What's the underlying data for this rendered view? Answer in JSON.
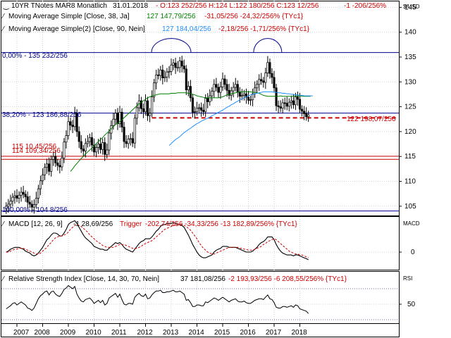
{
  "header": {
    "main_symbol": "10YR TNotes MAR8 Monatlich",
    "main_date": "31.01.2018",
    "main_ohlc": "- O:123 252/256 H:124 L:122 180/256 C:123 12/256",
    "main_change": "-1 -206/256%",
    "ma1_text": "Moving Average Simple [Close, 38, Ja]",
    "ma1_val": "127 147,79/256",
    "ma1_chg": "-31,05/256 -24,32/256% {TYc1}",
    "ma2_text": "Moving Average Simple(2) [Close, 90, Nein]",
    "ma2_val": "127 184,04/256",
    "ma2_chg": "-2,18/256 -1,71/256% {TYc1}",
    "macd_text": "MACD [12, 26, 9]",
    "macd_val": "-1 28,69/256",
    "macd_trigger": "Trigger",
    "macd_trigger_val": "-202,74/256 -34,33/256 -13 182,89/256% {TYc1}",
    "rsi_text": "Relative Strength Index [Close, 14, 30, 70, Nein]",
    "rsi_val": "37 181,08/256",
    "rsi_chg": "-2 193,93/256 -6 208,55/256% {TYc1}"
  },
  "axis": {
    "unit_main": "$/USD",
    "unit_macd": "MACD",
    "unit_rsi": "RSI"
  },
  "levels": {
    "fib0": "0,00% - 135 232/256",
    "fib38": "38,20% - 123 186,88/256",
    "fib100": "100,00% - 104 8/256",
    "r1": "115 10,45/256",
    "r2": "114 109,34/256",
    "support": "122 198,07/256"
  },
  "colors": {
    "up": "#000000",
    "down": "#000000",
    "ma38": "#008000",
    "ma90": "#1e90ff",
    "fib": "#00008b",
    "red": "#cc0000",
    "macd": "#000000",
    "trigger": "#cc0000",
    "rsi": "#000000",
    "grid": "#d0d0d0"
  },
  "chart_data": [
    {
      "type": "candlestick",
      "title": "10YR TNotes MAR8 Monatlich",
      "ylim": [
        102,
        147
      ],
      "yticks": [
        105,
        110,
        115,
        120,
        125,
        130,
        135,
        140,
        145
      ],
      "xticks": [
        "2007",
        "2008",
        "2009",
        "2010",
        "2011",
        "2012",
        "2013",
        "2014",
        "2015",
        "2016",
        "2017",
        "2018"
      ],
      "x_start": "2006-08",
      "close": [
        105.0,
        105.4,
        106.0,
        106.8,
        107.1,
        106.6,
        107.2,
        107.8,
        107.4,
        106.9,
        105.8,
        105.4,
        104.8,
        105.3,
        106.6,
        108.5,
        110.1,
        111.3,
        112.8,
        113.5,
        112.0,
        114.4,
        115.0,
        113.7,
        113.2,
        112.9,
        114.7,
        117.9,
        119.2,
        122.0,
        121.3,
        121.0,
        123.7,
        120.0,
        118.0,
        116.5,
        116.1,
        117.6,
        118.0,
        118.8,
        117.3,
        115.9,
        116.8,
        117.5,
        116.4,
        117.8,
        115.4,
        116.3,
        119.7,
        121.2,
        122.5,
        123.7,
        121.6,
        123.9,
        120.9,
        118.0,
        117.6,
        118.5,
        118.6,
        117.7,
        122.7,
        124.8,
        126.2,
        124.6,
        124.0,
        126.2,
        123.2,
        123.7,
        127.0,
        129.8,
        131.4,
        131.3,
        132.4,
        130.8,
        131.0,
        132.0,
        132.1,
        133.4,
        133.8,
        132.9,
        132.9,
        134.2,
        133.2,
        132.6,
        128.4,
        129.1,
        126.8,
        123.9,
        124.0,
        124.7,
        124.8,
        124.3,
        124.0,
        126.7,
        126.0,
        127.2,
        128.1,
        129.5,
        128.9,
        127.9,
        129.0,
        130.6,
        129.5,
        128.3,
        127.3,
        128.2,
        128.9,
        129.5,
        127.9,
        127.1,
        127.3,
        127.6,
        126.9,
        126.3,
        126.4,
        127.6,
        128.8,
        129.5,
        130.5,
        130.2,
        129.9,
        131.8,
        133.9,
        131.7,
        130.9,
        128.8,
        125.2,
        125.0,
        124.7,
        125.8,
        125.7,
        125.1,
        125.9,
        126.2,
        125.4,
        127.0,
        126.5,
        124.5,
        124.1,
        123.6,
        123.0,
        123.4
      ],
      "ma38_start": 30,
      "ma38": [
        112.0,
        112.5,
        113.1,
        113.6,
        114.1,
        114.6,
        115.0,
        115.5,
        115.9,
        116.3,
        116.7,
        117.1,
        117.6,
        118.0,
        118.4,
        118.8,
        119.3,
        119.7,
        120.1,
        120.6,
        121.0,
        121.4,
        121.7,
        122.0,
        122.4,
        122.8,
        123.2,
        123.6,
        124.0,
        124.4,
        124.8,
        125.2,
        125.6,
        125.9,
        126.2,
        126.5,
        126.8,
        127.0,
        127.2,
        127.3,
        127.4,
        127.5,
        127.6,
        127.6,
        127.6,
        127.6,
        127.6,
        127.7,
        127.7,
        127.7,
        127.8,
        127.8,
        127.8,
        127.8,
        127.8,
        127.7,
        127.6,
        127.5,
        127.4,
        127.2,
        127.1,
        127.0,
        126.9,
        126.8,
        126.8,
        126.8,
        126.8,
        126.8,
        126.8,
        126.8,
        126.9,
        127.0,
        127.2,
        127.4,
        127.5,
        127.6,
        127.7,
        127.8,
        127.9,
        128.0,
        128.0,
        128.0,
        128.0,
        128.0,
        128.0,
        127.9,
        127.9,
        127.8,
        127.7,
        127.5,
        127.3,
        127.2,
        127.1,
        127.1,
        127.1,
        127.1,
        127.1,
        127.1,
        127.2,
        127.1,
        127.1,
        127.1,
        127.1,
        127.1,
        127.1,
        127.2,
        127.2,
        127.2,
        127.1,
        127.1,
        127.1,
        127.1,
        127.1
      ],
      "ma90_start": 76,
      "ma90": [
        117.2,
        117.6,
        118.0,
        118.4,
        118.7,
        119.0,
        119.4,
        119.8,
        120.1,
        120.4,
        120.7,
        121.0,
        121.3,
        121.6,
        121.8,
        122.1,
        122.3,
        122.5,
        122.7,
        122.9,
        123.2,
        123.4,
        123.6,
        123.9,
        124.1,
        124.3,
        124.6,
        124.9,
        125.1,
        125.4,
        125.6,
        125.9,
        126.1,
        126.4,
        126.6,
        126.8,
        127.0,
        127.2,
        127.4,
        127.5,
        127.6,
        127.7,
        127.8,
        127.9,
        128.0,
        128.0,
        128.0,
        128.0,
        128.0,
        127.9,
        127.9,
        127.8,
        127.8,
        127.7,
        127.7,
        127.6,
        127.6,
        127.5,
        127.5,
        127.4,
        127.4,
        127.3,
        127.3,
        127.2,
        127.2,
        127.2,
        127.2,
        127.2
      ]
    },
    {
      "type": "line",
      "title": "MACD [12, 26, 9]",
      "series_names": [
        "MACD",
        "Trigger"
      ],
      "yticks": [
        0
      ],
      "macd": [
        0.0,
        0.1,
        0.3,
        0.4,
        0.5,
        0.5,
        0.5,
        0.4,
        0.3,
        0.1,
        0.0,
        -0.1,
        -0.3,
        -0.4,
        -0.3,
        -0.1,
        0.2,
        0.5,
        0.9,
        1.3,
        1.5,
        1.8,
        2.0,
        2.0,
        1.9,
        1.7,
        1.7,
        2.0,
        2.4,
        2.9,
        3.1,
        3.2,
        3.3,
        3.0,
        2.6,
        2.2,
        1.8,
        1.5,
        1.3,
        1.1,
        0.9,
        0.6,
        0.5,
        0.4,
        0.3,
        0.3,
        0.2,
        0.2,
        0.4,
        0.6,
        0.8,
        1.0,
        0.9,
        1.0,
        0.8,
        0.5,
        0.3,
        0.2,
        0.1,
        0.0,
        0.3,
        0.6,
        0.9,
        1.1,
        1.2,
        1.4,
        1.4,
        1.4,
        1.6,
        1.9,
        2.2,
        2.4,
        2.7,
        2.9,
        2.9,
        3.0,
        3.0,
        3.0,
        3.1,
        3.0,
        2.9,
        2.9,
        2.8,
        2.6,
        2.2,
        1.8,
        1.3,
        0.8,
        0.4,
        0.0,
        -0.3,
        -0.5,
        -0.6,
        -0.6,
        -0.5,
        -0.4,
        -0.3,
        0.0,
        0.2,
        0.3,
        0.4,
        0.6,
        0.6,
        0.6,
        0.5,
        0.5,
        0.5,
        0.5,
        0.4,
        0.3,
        0.2,
        0.1,
        0.0,
        0.0,
        0.0,
        0.1,
        0.3,
        0.5,
        0.8,
        1.0,
        1.1,
        1.3,
        1.6,
        1.6,
        1.6,
        1.3,
        0.8,
        0.4,
        0.1,
        -0.1,
        -0.2,
        -0.3,
        -0.3,
        -0.3,
        -0.4,
        -0.3,
        -0.3,
        -0.4,
        -0.5,
        -0.6,
        -0.7,
        -0.8
      ],
      "trigger": [
        0.0,
        0.0,
        0.1,
        0.2,
        0.3,
        0.3,
        0.4,
        0.4,
        0.4,
        0.3,
        0.2,
        0.1,
        0.0,
        -0.1,
        -0.2,
        -0.2,
        -0.1,
        0.1,
        0.3,
        0.5,
        0.8,
        1.0,
        1.3,
        1.5,
        1.6,
        1.7,
        1.7,
        1.8,
        1.9,
        2.1,
        2.4,
        2.6,
        2.8,
        2.9,
        2.8,
        2.7,
        2.5,
        2.3,
        2.1,
        1.8,
        1.6,
        1.4,
        1.2,
        1.0,
        0.9,
        0.7,
        0.6,
        0.5,
        0.5,
        0.5,
        0.5,
        0.6,
        0.7,
        0.8,
        0.8,
        0.8,
        0.7,
        0.6,
        0.5,
        0.4,
        0.4,
        0.4,
        0.5,
        0.6,
        0.8,
        0.9,
        1.0,
        1.1,
        1.2,
        1.4,
        1.6,
        1.8,
        2.0,
        2.2,
        2.4,
        2.5,
        2.6,
        2.7,
        2.8,
        2.9,
        2.9,
        2.9,
        2.9,
        2.8,
        2.7,
        2.5,
        2.3,
        2.0,
        1.7,
        1.4,
        1.0,
        0.7,
        0.4,
        0.2,
        0.0,
        -0.1,
        -0.2,
        -0.2,
        -0.1,
        0.0,
        0.1,
        0.2,
        0.3,
        0.4,
        0.5,
        0.5,
        0.5,
        0.5,
        0.5,
        0.4,
        0.4,
        0.3,
        0.3,
        0.2,
        0.2,
        0.2,
        0.3,
        0.4,
        0.5,
        0.6,
        0.8,
        0.9,
        1.1,
        1.2,
        1.3,
        1.4,
        1.3,
        1.1,
        0.9,
        0.7,
        0.5,
        0.3,
        0.1,
        0.0,
        -0.1,
        -0.2,
        -0.2,
        -0.3,
        -0.3,
        -0.4,
        -0.5,
        -0.6
      ]
    },
    {
      "type": "line",
      "title": "Relative Strength Index [Close, 14, 30, 70, Nein]",
      "yticks": [
        50
      ],
      "levels": [
        30,
        70
      ],
      "rsi": [
        44,
        46,
        48,
        51,
        52,
        49,
        51,
        53,
        51,
        49,
        45,
        44,
        42,
        45,
        51,
        57,
        61,
        63,
        66,
        67,
        62,
        66,
        67,
        63,
        61,
        60,
        64,
        69,
        71,
        74,
        72,
        70,
        73,
        63,
        58,
        54,
        53,
        56,
        57,
        58,
        55,
        51,
        53,
        55,
        52,
        55,
        49,
        51,
        58,
        60,
        62,
        64,
        59,
        63,
        56,
        50,
        49,
        51,
        51,
        50,
        59,
        62,
        64,
        61,
        60,
        63,
        57,
        58,
        62,
        65,
        67,
        67,
        68,
        65,
        65,
        66,
        66,
        67,
        68,
        66,
        66,
        67,
        65,
        63,
        55,
        56,
        52,
        47,
        47,
        49,
        49,
        48,
        48,
        53,
        52,
        54,
        56,
        58,
        57,
        55,
        57,
        59,
        57,
        55,
        53,
        55,
        56,
        57,
        54,
        53,
        53,
        54,
        52,
        51,
        51,
        53,
        55,
        56,
        57,
        57,
        56,
        59,
        62,
        57,
        56,
        52,
        46,
        45,
        45,
        47,
        47,
        46,
        47,
        48,
        46,
        49,
        48,
        44,
        43,
        42,
        41,
        38
      ]
    }
  ]
}
